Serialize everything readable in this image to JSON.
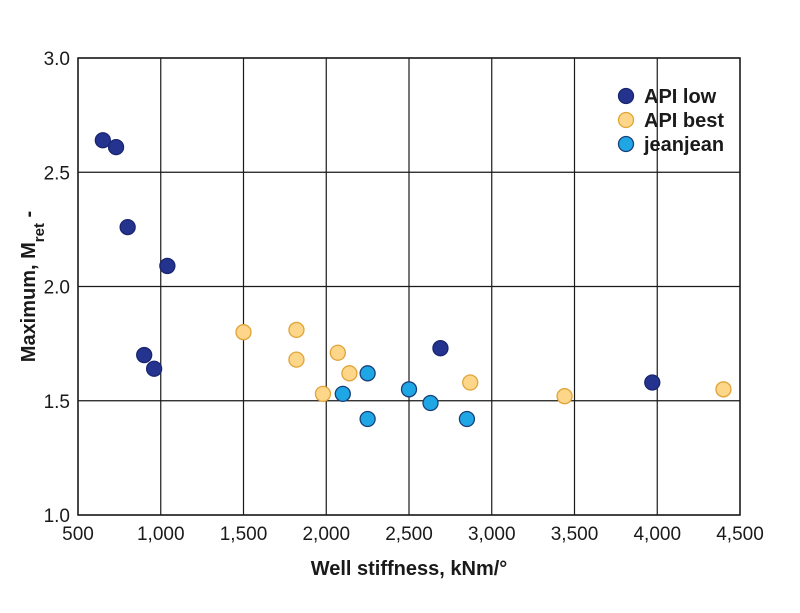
{
  "chart_data": {
    "type": "scatter",
    "xlabel": "Well stiffness, kNm/°",
    "ylabel": {
      "base": "Maximum, M",
      "subscript": "ret",
      "suffix": " -"
    },
    "xlim": [
      500,
      4500
    ],
    "ylim": [
      1.0,
      3.0
    ],
    "x_ticks": [
      500,
      1000,
      1500,
      2000,
      2500,
      3000,
      3500,
      4000,
      4500
    ],
    "x_tick_labels": [
      "500",
      "1,000",
      "1,500",
      "2,000",
      "2,500",
      "3,000",
      "3,500",
      "4,000",
      "4,500"
    ],
    "y_ticks": [
      1.0,
      1.5,
      2.0,
      2.5,
      3.0
    ],
    "y_tick_labels": [
      "1.0",
      "1.5",
      "2.0",
      "2.5",
      "3.0"
    ],
    "grid": true,
    "legend_position": "top-right",
    "series": [
      {
        "name": "API low",
        "color": "#24338e",
        "stroke": "#1a2570",
        "points": [
          [
            650,
            2.64
          ],
          [
            730,
            2.61
          ],
          [
            800,
            2.26
          ],
          [
            1040,
            2.09
          ],
          [
            900,
            1.7
          ],
          [
            960,
            1.64
          ],
          [
            2690,
            1.73
          ],
          [
            3970,
            1.58
          ]
        ]
      },
      {
        "name": "API best",
        "color": "#fdd68a",
        "stroke": "#e0a437",
        "points": [
          [
            1500,
            1.8
          ],
          [
            1820,
            1.81
          ],
          [
            1820,
            1.68
          ],
          [
            2070,
            1.71
          ],
          [
            2140,
            1.62
          ],
          [
            1980,
            1.53
          ],
          [
            2870,
            1.58
          ],
          [
            3440,
            1.52
          ],
          [
            4400,
            1.55
          ]
        ]
      },
      {
        "name": "jeanjean",
        "color": "#1ea7e4",
        "stroke": "#1a3f78",
        "points": [
          [
            2250,
            1.62
          ],
          [
            2100,
            1.53
          ],
          [
            2250,
            1.42
          ],
          [
            2500,
            1.55
          ],
          [
            2630,
            1.49
          ],
          [
            2850,
            1.42
          ]
        ]
      }
    ]
  }
}
